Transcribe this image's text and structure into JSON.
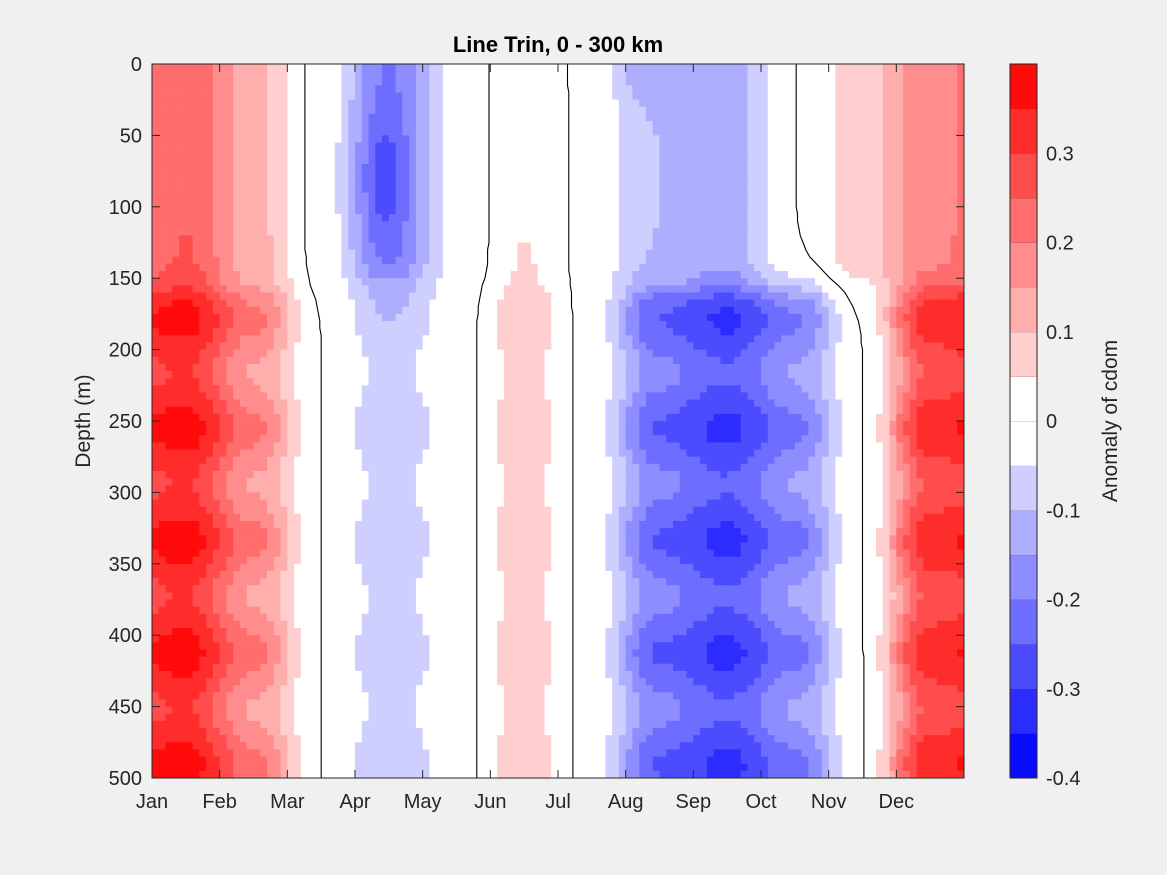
{
  "chart_data": {
    "type": "heatmap",
    "subtype": "filled-contour",
    "title": "Line Trin, 0 - 300 km",
    "xlabel": "",
    "ylabel": "Depth (m)",
    "x_tick_labels": [
      "Jan",
      "Feb",
      "Mar",
      "Apr",
      "May",
      "Jun",
      "Jul",
      "Aug",
      "Sep",
      "Oct",
      "Nov",
      "Dec"
    ],
    "x_range_months": [
      0,
      12
    ],
    "y_ticks": [
      0,
      50,
      100,
      150,
      200,
      250,
      300,
      350,
      400,
      450,
      500
    ],
    "y_range": [
      0,
      500
    ],
    "y_reversed": true,
    "colorbar": {
      "label": "Anomaly of cdom",
      "range": [
        -0.4,
        0.4
      ],
      "tick_values": [
        -0.4,
        -0.3,
        -0.2,
        -0.1,
        0,
        0.1,
        0.2,
        0.3
      ],
      "tick_labels": [
        "-0.4",
        "-0.3",
        "-0.2",
        "-0.1",
        "0",
        "0.1",
        "0.2",
        "0.3"
      ],
      "n_levels": 16,
      "colormap": "blue-white-red",
      "min_color": "#0000ff",
      "max_color": "#ff0000",
      "mid_color": "#ffffff"
    },
    "zero_contour_color": "#000000",
    "approx_month_profiles_upper_0_150m": [
      0.25,
      0.12,
      -0.02,
      -0.2,
      -0.04,
      0.05,
      -0.02,
      -0.1,
      -0.12,
      0.0,
      0.08,
      0.18
    ],
    "approx_month_profiles_lower_150_500m": [
      0.34,
      0.18,
      0.0,
      -0.08,
      -0.02,
      0.08,
      -0.02,
      -0.22,
      -0.28,
      -0.18,
      0.0,
      0.3
    ]
  }
}
